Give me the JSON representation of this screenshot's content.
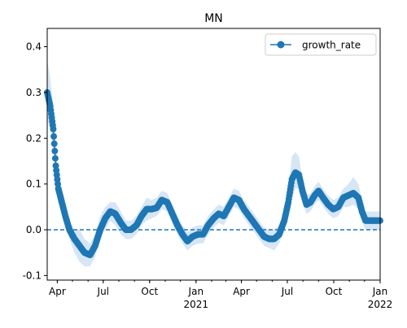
{
  "chart_data": {
    "type": "line",
    "title": "MN",
    "xlabel": "",
    "ylabel": "",
    "x_range": [
      "2020-03-12",
      "2022-01-01"
    ],
    "ylim": [
      -0.11,
      0.44
    ],
    "yticks": [
      -0.1,
      0.0,
      0.1,
      0.2,
      0.3,
      0.4
    ],
    "xticks": [
      {
        "date": "2020-04-01",
        "label": "Apr",
        "sublabel": ""
      },
      {
        "date": "2020-07-01",
        "label": "Jul",
        "sublabel": ""
      },
      {
        "date": "2020-10-01",
        "label": "Oct",
        "sublabel": ""
      },
      {
        "date": "2021-01-01",
        "label": "Jan",
        "sublabel": "2021"
      },
      {
        "date": "2021-04-01",
        "label": "Apr",
        "sublabel": ""
      },
      {
        "date": "2021-07-01",
        "label": "Jul",
        "sublabel": ""
      },
      {
        "date": "2021-10-01",
        "label": "Oct",
        "sublabel": ""
      },
      {
        "date": "2022-01-01",
        "label": "Jan",
        "sublabel": "2022"
      }
    ],
    "reference_line": {
      "y": 0.0,
      "style": "dashed"
    },
    "legend": {
      "position": "top-right"
    },
    "grid": false,
    "series": [
      {
        "name": "growth_rate",
        "color": "#1f77b4",
        "band_color": "#d6e6f5",
        "marker": "circle",
        "points": [
          {
            "x": "2020-03-12",
            "y": 0.3,
            "lo": 0.24,
            "hi": 0.37
          },
          {
            "x": "2020-03-18",
            "y": 0.27,
            "lo": 0.22,
            "hi": 0.33
          },
          {
            "x": "2020-03-24",
            "y": 0.22,
            "lo": 0.18,
            "hi": 0.27
          },
          {
            "x": "2020-03-29",
            "y": 0.14,
            "lo": 0.11,
            "hi": 0.18
          },
          {
            "x": "2020-04-03",
            "y": 0.09,
            "lo": 0.06,
            "hi": 0.12
          },
          {
            "x": "2020-04-10",
            "y": 0.06,
            "lo": 0.04,
            "hi": 0.09
          },
          {
            "x": "2020-04-17",
            "y": 0.03,
            "lo": 0.01,
            "hi": 0.06
          },
          {
            "x": "2020-04-25",
            "y": 0.0,
            "lo": -0.02,
            "hi": 0.02
          },
          {
            "x": "2020-05-05",
            "y": -0.02,
            "lo": -0.05,
            "hi": 0.0
          },
          {
            "x": "2020-05-15",
            "y": -0.035,
            "lo": -0.07,
            "hi": 0.0
          },
          {
            "x": "2020-05-25",
            "y": -0.05,
            "lo": -0.08,
            "hi": -0.02
          },
          {
            "x": "2020-06-05",
            "y": -0.055,
            "lo": -0.08,
            "hi": -0.03
          },
          {
            "x": "2020-06-15",
            "y": -0.035,
            "lo": -0.06,
            "hi": -0.01
          },
          {
            "x": "2020-06-25",
            "y": 0.0,
            "lo": -0.02,
            "hi": 0.03
          },
          {
            "x": "2020-07-05",
            "y": 0.025,
            "lo": 0.0,
            "hi": 0.05
          },
          {
            "x": "2020-07-15",
            "y": 0.04,
            "lo": 0.02,
            "hi": 0.06
          },
          {
            "x": "2020-07-25",
            "y": 0.035,
            "lo": 0.01,
            "hi": 0.06
          },
          {
            "x": "2020-08-05",
            "y": 0.015,
            "lo": -0.01,
            "hi": 0.04
          },
          {
            "x": "2020-08-15",
            "y": 0.0,
            "lo": -0.02,
            "hi": 0.02
          },
          {
            "x": "2020-08-25",
            "y": 0.0,
            "lo": -0.02,
            "hi": 0.02
          },
          {
            "x": "2020-09-05",
            "y": 0.01,
            "lo": -0.01,
            "hi": 0.03
          },
          {
            "x": "2020-09-15",
            "y": 0.03,
            "lo": 0.01,
            "hi": 0.05
          },
          {
            "x": "2020-09-25",
            "y": 0.045,
            "lo": 0.02,
            "hi": 0.07
          },
          {
            "x": "2020-10-05",
            "y": 0.045,
            "lo": 0.025,
            "hi": 0.065
          },
          {
            "x": "2020-10-15",
            "y": 0.048,
            "lo": 0.03,
            "hi": 0.07
          },
          {
            "x": "2020-10-25",
            "y": 0.065,
            "lo": 0.045,
            "hi": 0.085
          },
          {
            "x": "2020-11-05",
            "y": 0.06,
            "lo": 0.04,
            "hi": 0.08
          },
          {
            "x": "2020-11-15",
            "y": 0.035,
            "lo": 0.015,
            "hi": 0.055
          },
          {
            "x": "2020-11-25",
            "y": 0.01,
            "lo": -0.01,
            "hi": 0.03
          },
          {
            "x": "2020-12-05",
            "y": -0.01,
            "lo": -0.03,
            "hi": 0.01
          },
          {
            "x": "2020-12-15",
            "y": -0.025,
            "lo": -0.045,
            "hi": -0.005
          },
          {
            "x": "2020-12-25",
            "y": -0.015,
            "lo": -0.035,
            "hi": 0.005
          },
          {
            "x": "2021-01-05",
            "y": -0.01,
            "lo": -0.03,
            "hi": 0.01
          },
          {
            "x": "2021-01-15",
            "y": -0.01,
            "lo": -0.03,
            "hi": 0.01
          },
          {
            "x": "2021-01-25",
            "y": 0.01,
            "lo": -0.01,
            "hi": 0.03
          },
          {
            "x": "2021-02-05",
            "y": 0.025,
            "lo": 0.005,
            "hi": 0.045
          },
          {
            "x": "2021-02-15",
            "y": 0.035,
            "lo": 0.015,
            "hi": 0.055
          },
          {
            "x": "2021-02-25",
            "y": 0.03,
            "lo": 0.01,
            "hi": 0.05
          },
          {
            "x": "2021-03-07",
            "y": 0.05,
            "lo": 0.03,
            "hi": 0.07
          },
          {
            "x": "2021-03-17",
            "y": 0.07,
            "lo": 0.05,
            "hi": 0.09
          },
          {
            "x": "2021-03-27",
            "y": 0.065,
            "lo": 0.045,
            "hi": 0.085
          },
          {
            "x": "2021-04-06",
            "y": 0.045,
            "lo": 0.025,
            "hi": 0.065
          },
          {
            "x": "2021-04-16",
            "y": 0.03,
            "lo": 0.01,
            "hi": 0.05
          },
          {
            "x": "2021-04-26",
            "y": 0.015,
            "lo": -0.005,
            "hi": 0.035
          },
          {
            "x": "2021-05-06",
            "y": 0.0,
            "lo": -0.02,
            "hi": 0.02
          },
          {
            "x": "2021-05-16",
            "y": -0.015,
            "lo": -0.035,
            "hi": 0.005
          },
          {
            "x": "2021-05-26",
            "y": -0.02,
            "lo": -0.04,
            "hi": 0.0
          },
          {
            "x": "2021-06-05",
            "y": -0.02,
            "lo": -0.045,
            "hi": 0.0
          },
          {
            "x": "2021-06-15",
            "y": -0.01,
            "lo": -0.03,
            "hi": 0.01
          },
          {
            "x": "2021-06-25",
            "y": 0.02,
            "lo": 0.0,
            "hi": 0.045
          },
          {
            "x": "2021-07-03",
            "y": 0.06,
            "lo": 0.03,
            "hi": 0.09
          },
          {
            "x": "2021-07-10",
            "y": 0.11,
            "lo": 0.07,
            "hi": 0.16
          },
          {
            "x": "2021-07-17",
            "y": 0.125,
            "lo": 0.09,
            "hi": 0.17
          },
          {
            "x": "2021-07-24",
            "y": 0.12,
            "lo": 0.09,
            "hi": 0.16
          },
          {
            "x": "2021-07-31",
            "y": 0.085,
            "lo": 0.06,
            "hi": 0.11
          },
          {
            "x": "2021-08-08",
            "y": 0.055,
            "lo": 0.035,
            "hi": 0.075
          },
          {
            "x": "2021-08-16",
            "y": 0.06,
            "lo": 0.04,
            "hi": 0.08
          },
          {
            "x": "2021-08-24",
            "y": 0.075,
            "lo": 0.055,
            "hi": 0.095
          },
          {
            "x": "2021-09-01",
            "y": 0.085,
            "lo": 0.065,
            "hi": 0.105
          },
          {
            "x": "2021-09-10",
            "y": 0.07,
            "lo": 0.05,
            "hi": 0.09
          },
          {
            "x": "2021-09-20",
            "y": 0.055,
            "lo": 0.035,
            "hi": 0.075
          },
          {
            "x": "2021-09-30",
            "y": 0.045,
            "lo": 0.025,
            "hi": 0.065
          },
          {
            "x": "2021-10-10",
            "y": 0.05,
            "lo": 0.03,
            "hi": 0.07
          },
          {
            "x": "2021-10-20",
            "y": 0.07,
            "lo": 0.05,
            "hi": 0.09
          },
          {
            "x": "2021-10-30",
            "y": 0.075,
            "lo": 0.05,
            "hi": 0.1
          },
          {
            "x": "2021-11-09",
            "y": 0.08,
            "lo": 0.055,
            "hi": 0.115
          },
          {
            "x": "2021-11-19",
            "y": 0.07,
            "lo": 0.045,
            "hi": 0.1
          },
          {
            "x": "2021-11-26",
            "y": 0.04,
            "lo": 0.02,
            "hi": 0.065
          },
          {
            "x": "2021-12-03",
            "y": 0.02,
            "lo": 0.0,
            "hi": 0.04
          },
          {
            "x": "2021-12-13",
            "y": 0.02,
            "lo": 0.0,
            "hi": 0.04
          },
          {
            "x": "2021-12-23",
            "y": 0.02,
            "lo": 0.0,
            "hi": 0.04
          },
          {
            "x": "2022-01-01",
            "y": 0.02,
            "lo": 0.0,
            "hi": 0.04
          }
        ]
      }
    ]
  }
}
